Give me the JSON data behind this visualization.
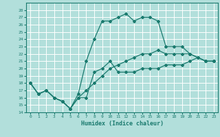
{
  "xlabel": "Humidex (Indice chaleur)",
  "background_color": "#b2dfdb",
  "grid_color": "#ffffff",
  "line_color": "#1a7a6e",
  "xlim": [
    -0.5,
    23.5
  ],
  "ylim": [
    14,
    29
  ],
  "xticks": [
    0,
    1,
    2,
    3,
    4,
    5,
    6,
    7,
    8,
    9,
    10,
    11,
    12,
    13,
    14,
    15,
    16,
    17,
    18,
    19,
    20,
    21,
    22,
    23
  ],
  "yticks": [
    14,
    15,
    16,
    17,
    18,
    19,
    20,
    21,
    22,
    23,
    24,
    25,
    26,
    27,
    28
  ],
  "line1_x": [
    0,
    1,
    2,
    3,
    4,
    5,
    6,
    7,
    8,
    9,
    10,
    11,
    12,
    13,
    14,
    15,
    16,
    17,
    18,
    19,
    20,
    21,
    22,
    23
  ],
  "line1_y": [
    18,
    16.5,
    17,
    16,
    15.5,
    14.5,
    16,
    16,
    19.5,
    20,
    21,
    19.5,
    19.5,
    19.5,
    20,
    20,
    20,
    20.5,
    20.5,
    20.5,
    21,
    21.5,
    21,
    21
  ],
  "line2_x": [
    0,
    1,
    2,
    3,
    4,
    5,
    6,
    7,
    8,
    9,
    10,
    11,
    12,
    13,
    14,
    15,
    16,
    17,
    18,
    19,
    20,
    21,
    22,
    23
  ],
  "line2_y": [
    18,
    16.5,
    17,
    16,
    15.5,
    14.5,
    16.5,
    21,
    24,
    26.5,
    26.5,
    27,
    27.5,
    26.5,
    27,
    27,
    26.5,
    23,
    23,
    23,
    22,
    21.5,
    21,
    21
  ],
  "line3_x": [
    0,
    1,
    2,
    3,
    4,
    5,
    6,
    7,
    8,
    9,
    10,
    11,
    12,
    13,
    14,
    15,
    16,
    17,
    18,
    19,
    20,
    21,
    22,
    23
  ],
  "line3_y": [
    18,
    16.5,
    17,
    16,
    15.5,
    14.5,
    16,
    17,
    18,
    19,
    20,
    20.5,
    21,
    21.5,
    22,
    22,
    22.5,
    22,
    22,
    22,
    22,
    21.5,
    21,
    21
  ]
}
